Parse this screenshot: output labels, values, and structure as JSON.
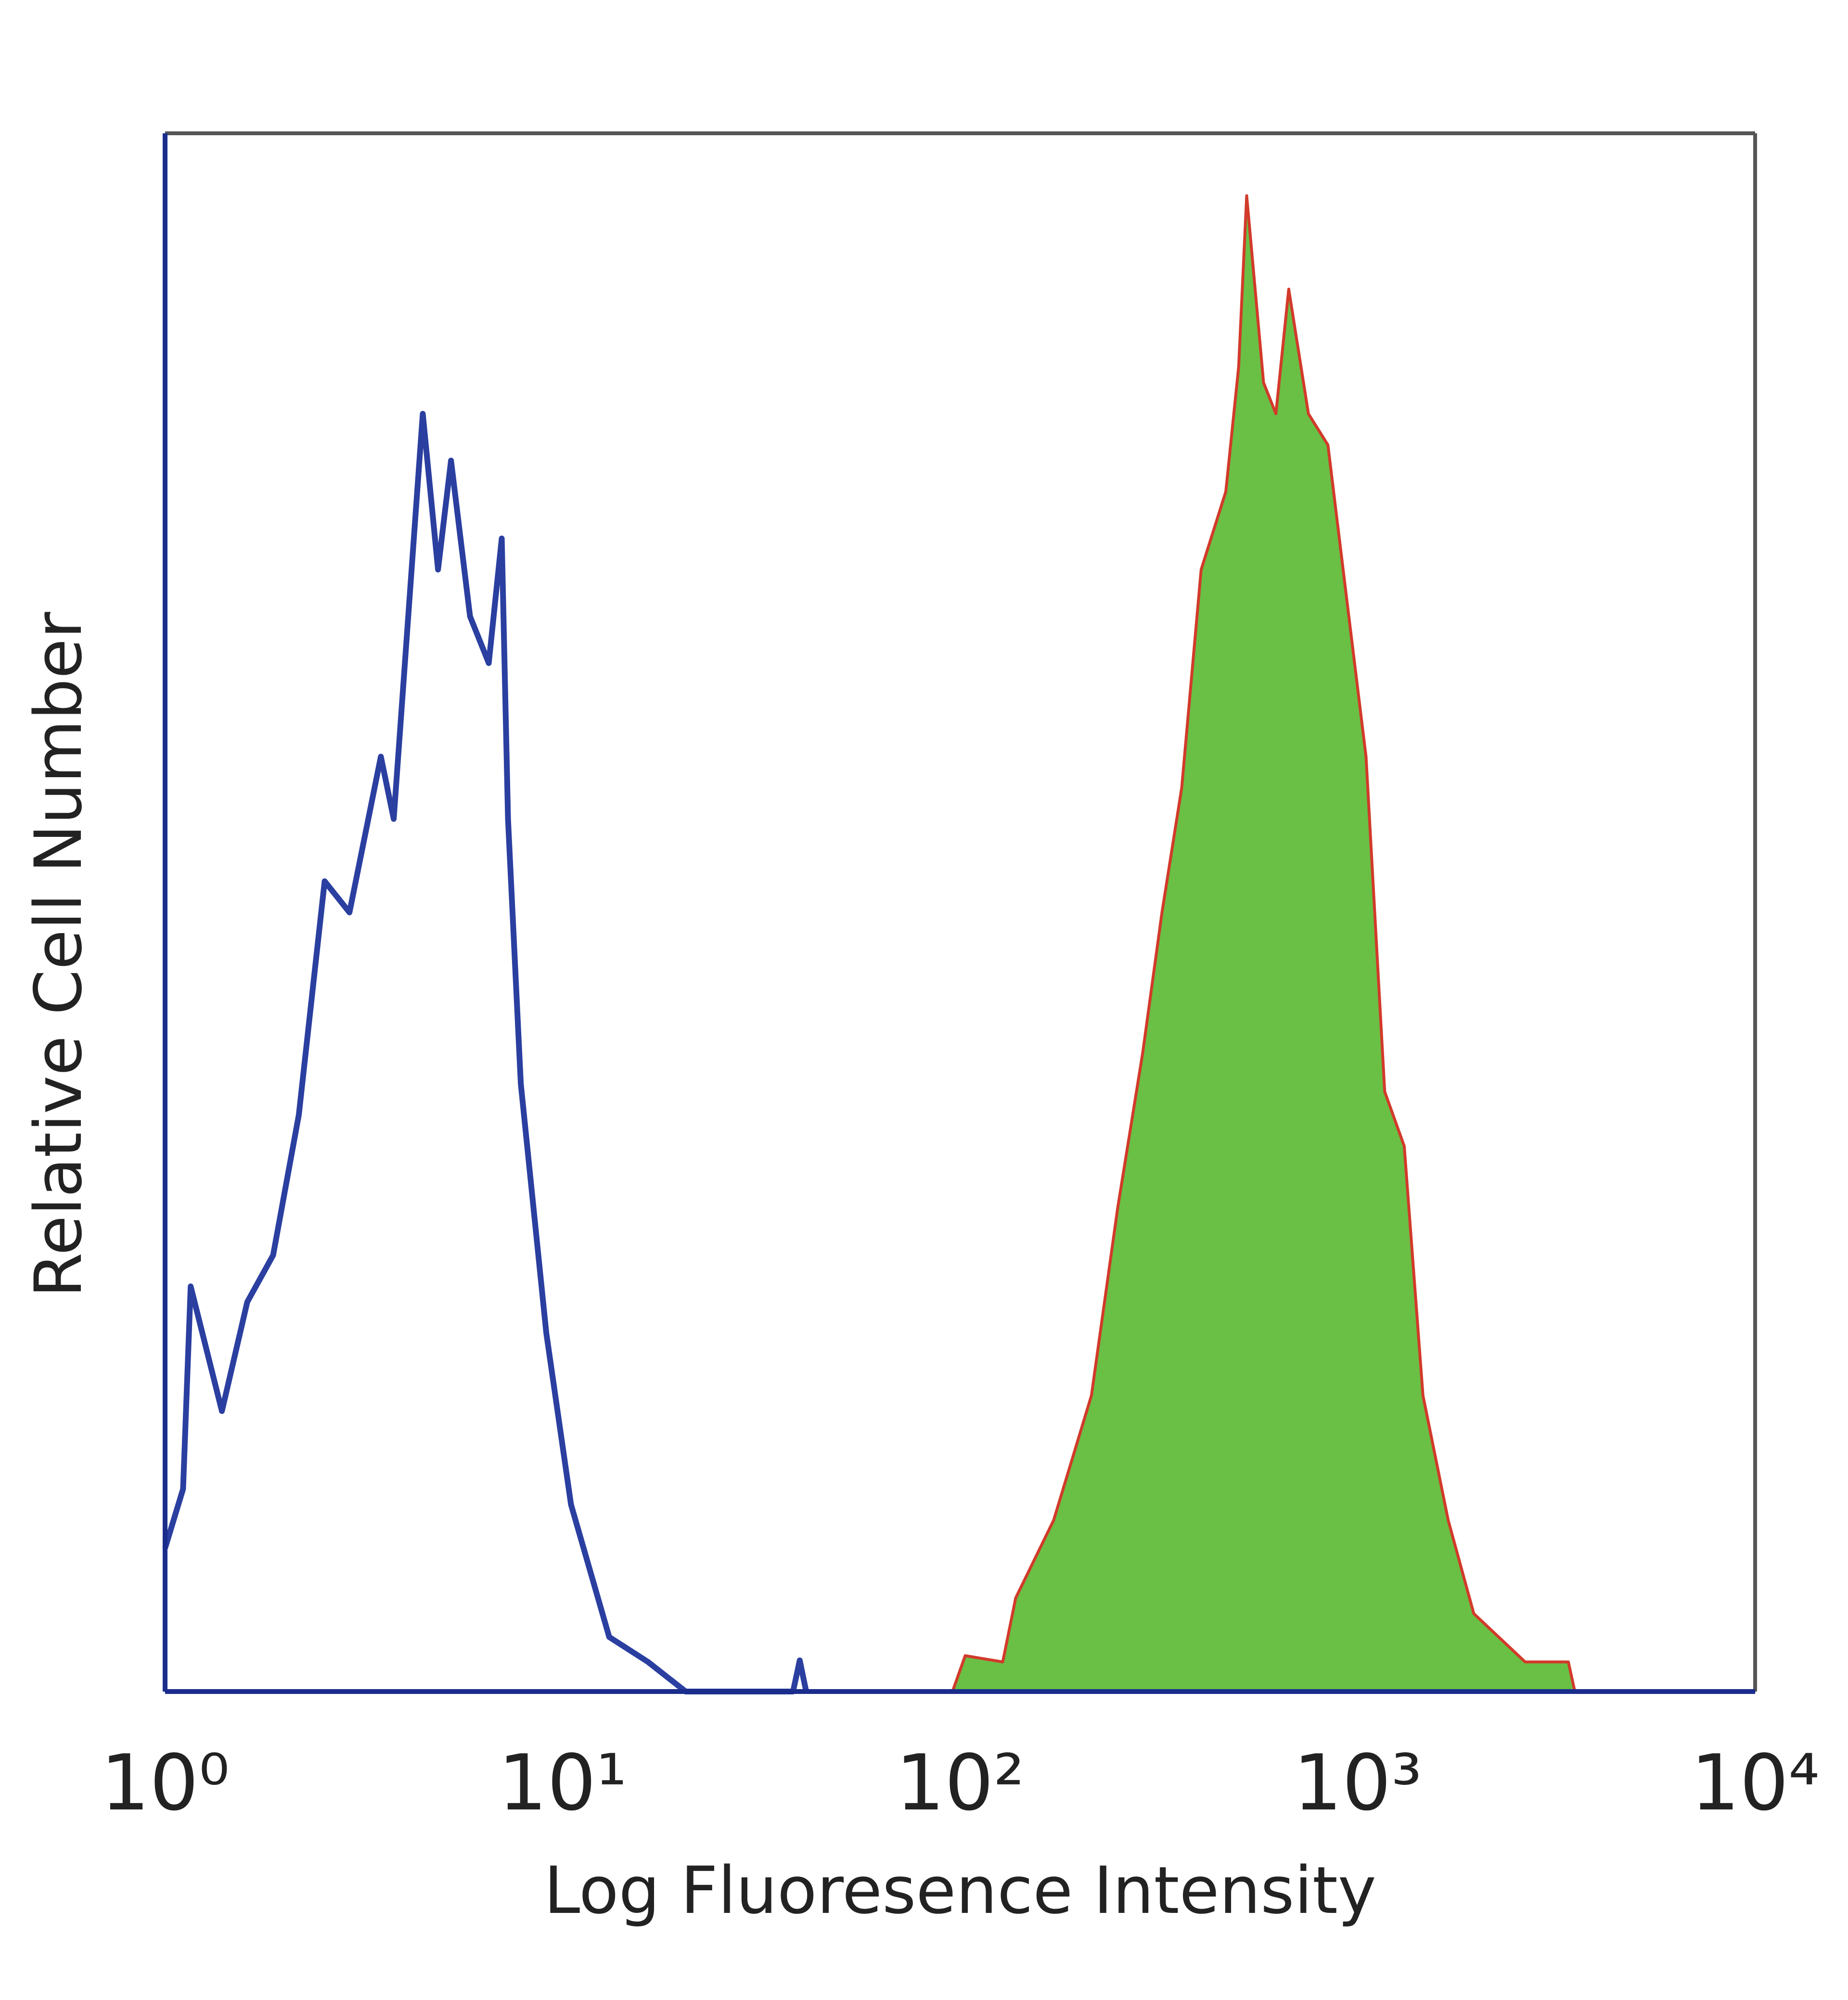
{
  "chart_data": {
    "type": "histogram-line",
    "x_label": "Log Fluoresence Intensity",
    "y_label": "Relative Cell Number",
    "log_x": true,
    "xlim": [
      1,
      10000
    ],
    "ylim": [
      0,
      100
    ],
    "xticks": [
      {
        "value": 1,
        "label": "10⁰"
      },
      {
        "value": 10,
        "label": "10¹"
      },
      {
        "value": 100,
        "label": "10²"
      },
      {
        "value": 1000,
        "label": "10³"
      },
      {
        "value": 10000,
        "label": "10⁴"
      }
    ],
    "series": [
      {
        "color": "#2a3fa0",
        "filled": false,
        "x": [
          1,
          1.11,
          1.16,
          1.39,
          1.61,
          1.87,
          2.17,
          2.52,
          2.91,
          3.49,
          3.76,
          4.45,
          4.86,
          5.24,
          5.85,
          6.52,
          7.03,
          7.29,
          7.85,
          9.1,
          10.5,
          13.1,
          16.4,
          20.4,
          38,
          39.5,
          41
        ],
        "values": [
          9.2,
          13,
          26,
          18,
          25,
          28,
          37,
          52,
          50,
          60,
          56,
          82,
          72,
          79,
          69,
          66,
          74,
          56,
          39,
          23,
          12,
          3.5,
          1.9,
          0,
          0,
          2,
          0
        ]
      },
      {
        "color": "#6abf45",
        "edge_color": "#d23a2a",
        "filled": true,
        "x": [
          95.7,
          103,
          128,
          138,
          172,
          214,
          249,
          288,
          322,
          361,
          404,
          466,
          502,
          526,
          580,
          623,
          671,
          752,
          842,
          940,
          1050,
          1170,
          1310,
          1460,
          1690,
          1960,
          2640,
          3390,
          3520
        ],
        "values": [
          0,
          2.3,
          1.9,
          6,
          11,
          19,
          31,
          41,
          50,
          58,
          72,
          77,
          85,
          96,
          84,
          82,
          90,
          82,
          80,
          70,
          60,
          38.5,
          35,
          19,
          11,
          5,
          1.9,
          1.9,
          0
        ]
      }
    ]
  }
}
